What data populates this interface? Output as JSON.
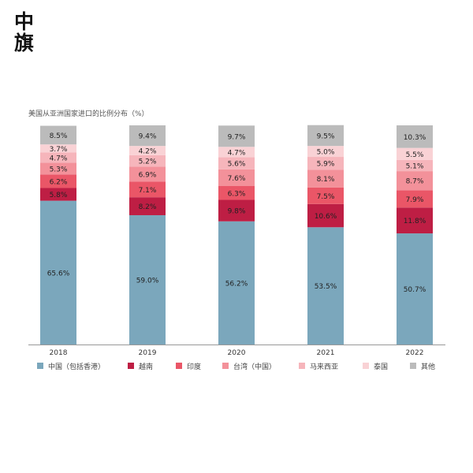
{
  "brand": {
    "logo_text": "中旗"
  },
  "chart_data": {
    "type": "bar",
    "stacked": true,
    "percent": true,
    "title": "美国从亚洲国家进口的比例分布（%）",
    "categories": [
      "2018",
      "2019",
      "2020",
      "2021",
      "2022"
    ],
    "ylim": [
      0,
      100
    ],
    "legend_position": "bottom",
    "series": [
      {
        "name": "中国（包括香港）",
        "color": "#7BA7BC",
        "values": [
          65.6,
          59.0,
          56.2,
          53.5,
          50.7
        ],
        "labels": [
          "65.6%",
          "59.0%",
          "56.2%",
          "53.5%",
          "50.7%"
        ]
      },
      {
        "name": "越南",
        "color": "#BE1E44",
        "values": [
          5.8,
          8.2,
          9.8,
          10.6,
          11.8
        ],
        "labels": [
          "5.8%",
          "8.2%",
          "9.8%",
          "10.6%",
          "11.8%"
        ]
      },
      {
        "name": "印度",
        "color": "#EA5667",
        "values": [
          6.2,
          7.1,
          6.3,
          7.5,
          7.9
        ],
        "labels": [
          "6.2%",
          "7.1%",
          "6.3%",
          "7.5%",
          "7.9%"
        ]
      },
      {
        "name": "台湾（中国）",
        "color": "#F3919A",
        "values": [
          5.3,
          6.9,
          7.6,
          8.1,
          8.7
        ],
        "labels": [
          "5.3%",
          "6.9%",
          "7.6%",
          "8.1%",
          "8.7%"
        ]
      },
      {
        "name": "马来西亚",
        "color": "#F6B5BB",
        "values": [
          4.7,
          5.2,
          5.6,
          5.9,
          5.1
        ],
        "labels": [
          "4.7%",
          "5.2%",
          "5.6%",
          "5.9%",
          "5.1%"
        ]
      },
      {
        "name": "泰国",
        "color": "#F9D2D5",
        "values": [
          3.7,
          4.2,
          4.7,
          5.0,
          5.5
        ],
        "labels": [
          "3.7%",
          "4.2%",
          "4.7%",
          "5.0%",
          "5.5%"
        ]
      },
      {
        "name": "其他",
        "color": "#BBBBBB",
        "values": [
          8.5,
          9.4,
          9.7,
          9.5,
          10.3
        ],
        "labels": [
          "8.5%",
          "9.4%",
          "9.7%",
          "9.5%",
          "10.3%"
        ]
      }
    ]
  }
}
